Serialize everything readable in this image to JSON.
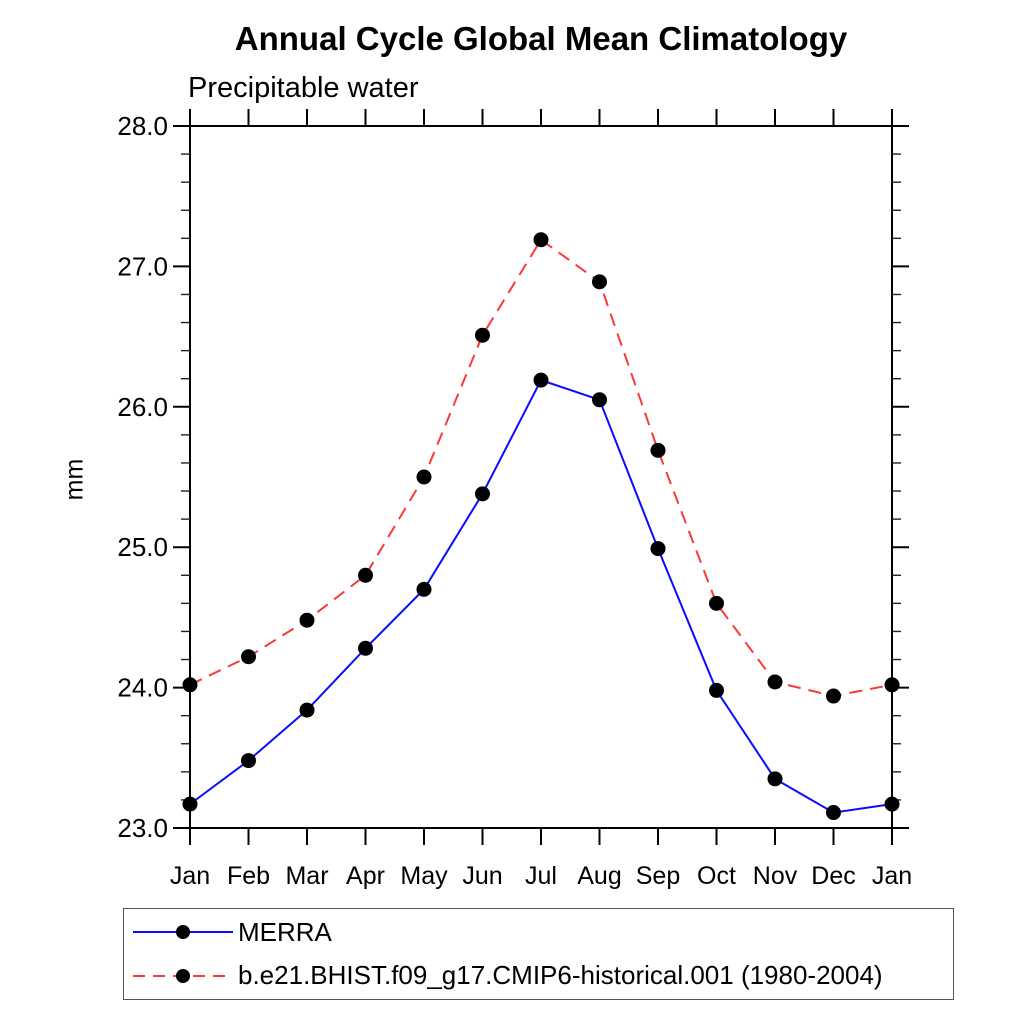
{
  "chart": {
    "title": "Annual Cycle Global Mean Climatology",
    "subtitle": "Precipitable water",
    "ylabel": "mm"
  },
  "chart_data": {
    "type": "line",
    "title": "Annual Cycle Global Mean Climatology",
    "subtitle": "Precipitable water",
    "xlabel": "",
    "ylabel": "mm",
    "categories": [
      "Jan",
      "Feb",
      "Mar",
      "Apr",
      "May",
      "Jun",
      "Jul",
      "Aug",
      "Sep",
      "Oct",
      "Nov",
      "Dec",
      "Jan"
    ],
    "ylim": [
      23.0,
      28.0
    ],
    "y_major_tick_step": 1.0,
    "y_minor_tick_step": 0.2,
    "y_tick_labels": [
      "23.0",
      "24.0",
      "25.0",
      "26.0",
      "27.0",
      "28.0"
    ],
    "grid": false,
    "legend_position": "bottom-left",
    "marker": "filled-circle",
    "marker_color": "#000000",
    "series": [
      {
        "name": "MERRA",
        "line_style": "solid",
        "color": "#0b0bff",
        "values": [
          23.17,
          23.48,
          23.84,
          24.28,
          24.7,
          25.38,
          26.19,
          26.05,
          24.99,
          23.98,
          23.35,
          23.11,
          23.17
        ]
      },
      {
        "name": "b.e21.BHIST.f09_g17.CMIP6-historical.001 (1980-2004)",
        "line_style": "dashed",
        "color": "#f93a3a",
        "values": [
          24.02,
          24.22,
          24.48,
          24.8,
          25.5,
          26.51,
          27.19,
          26.89,
          25.69,
          24.6,
          24.04,
          23.94,
          24.02
        ]
      }
    ]
  }
}
